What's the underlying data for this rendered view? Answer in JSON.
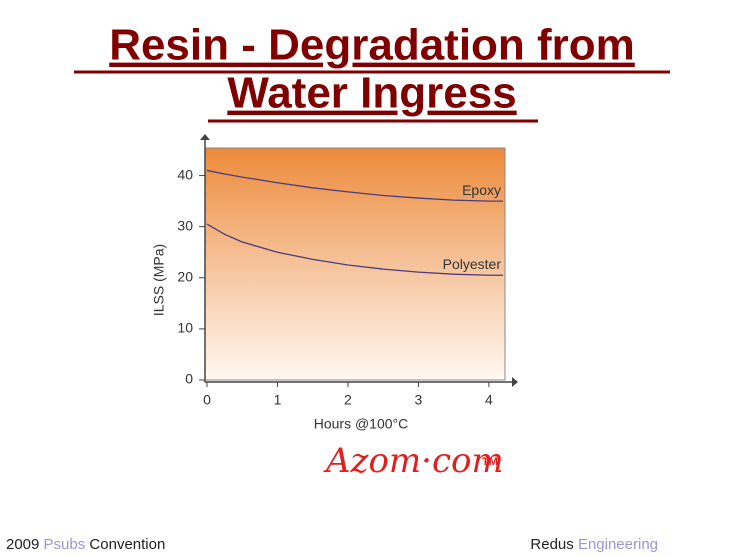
{
  "slide": {
    "title_lines": [
      "Resin - Degradation from",
      "Water Ingress"
    ],
    "footer_left": [
      "2009",
      "Psubs",
      "Convention"
    ],
    "footer_right": [
      "Redus",
      "Engineering"
    ],
    "logo": {
      "text": "Azom·com",
      "mark": "TM"
    }
  },
  "chart_data": {
    "type": "line",
    "x_label": "Hours @100°C",
    "y_label": "ILSS (MPa)",
    "x": [
      0,
      0.25,
      0.5,
      1,
      1.5,
      2,
      2.5,
      3,
      3.5,
      4,
      4.2
    ],
    "series": [
      {
        "name": "Epoxy",
        "color": "#4b3c7c",
        "values": [
          41,
          40.3,
          39.7,
          38.6,
          37.6,
          36.8,
          36.1,
          35.6,
          35.2,
          35,
          35
        ]
      },
      {
        "name": "Polyester",
        "color": "#4b3c7c",
        "values": [
          30.5,
          28.5,
          27,
          25,
          23.6,
          22.5,
          21.7,
          21.1,
          20.7,
          20.5,
          20.5
        ]
      }
    ],
    "xlim": [
      0,
      4.2
    ],
    "ylim": [
      0,
      45
    ],
    "xticks": [
      0,
      1,
      2,
      3,
      4
    ],
    "yticks": [
      0,
      10,
      20,
      30,
      40
    ]
  }
}
